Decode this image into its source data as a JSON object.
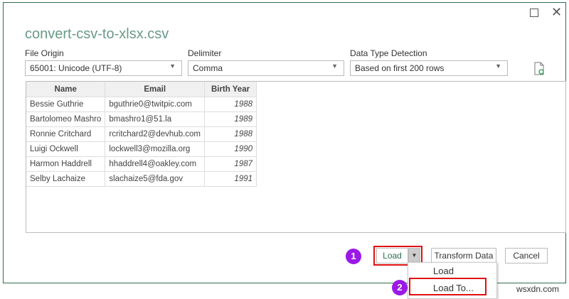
{
  "dialog": {
    "title": "convert-csv-to-xlsx.csv",
    "maximize_icon": "square-icon",
    "close_icon": "x-icon",
    "refresh_icon": "refresh-file-icon"
  },
  "options": {
    "file_origin": {
      "label": "File Origin",
      "value": "65001: Unicode (UTF-8)"
    },
    "delimiter": {
      "label": "Delimiter",
      "value": "Comma"
    },
    "data_type_detection": {
      "label": "Data Type Detection",
      "value": "Based on first 200 rows"
    }
  },
  "table": {
    "columns": [
      "Name",
      "Email",
      "Birth Year"
    ],
    "rows": [
      [
        "Bessie Guthrie",
        "bguthrie0@twitpic.com",
        "1988"
      ],
      [
        "Bartolomeo Mashro",
        "bmashro1@51.la",
        "1989"
      ],
      [
        "Ronnie Critchard",
        "rcritchard2@devhub.com",
        "1988"
      ],
      [
        "Luigi Ockwell",
        "lockwell3@mozilla.org",
        "1990"
      ],
      [
        "Harmon Haddrell",
        "hhaddrell4@oakley.com",
        "1987"
      ],
      [
        "Selby Lachaize",
        "slachaize5@fda.gov",
        "1991"
      ]
    ]
  },
  "buttons": {
    "load": "Load",
    "transform": "Transform Data",
    "cancel": "Cancel"
  },
  "menu": {
    "items": [
      "Load",
      "Load To..."
    ]
  },
  "badges": [
    "1",
    "2"
  ],
  "colors": {
    "highlight": "#e01010",
    "badge": "#9b19e6",
    "title": "#6a9a86"
  },
  "watermark": "wsxdn.com"
}
